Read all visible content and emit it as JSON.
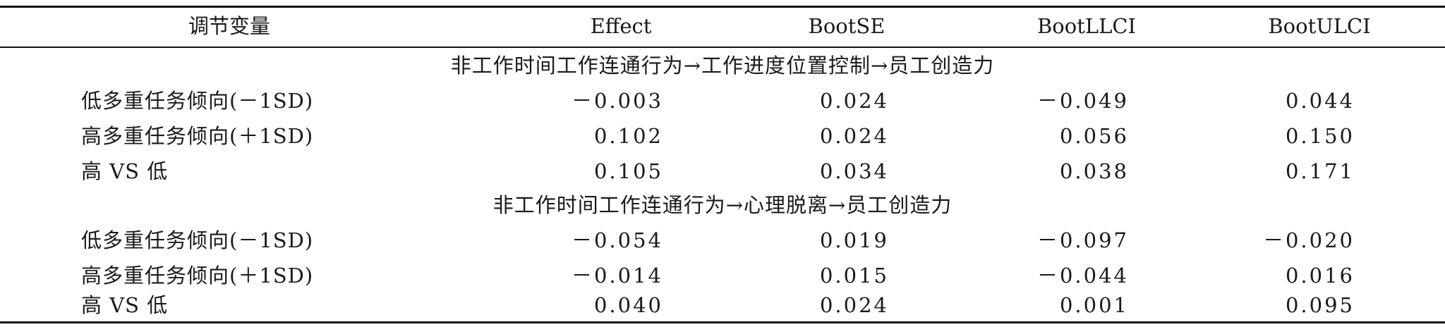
{
  "header": {
    "col0": "调节变量",
    "col1": "Effect",
    "col2": "BootSE",
    "col3": "BootLLCI",
    "col4": "BootULCI"
  },
  "sections": [
    {
      "title": "非工作时间工作连通行为→工作进度位置控制→员工创造力",
      "rows": [
        {
          "label": "低多重任务倾向(－1SD)",
          "effect": "－0.003",
          "se": "0.024",
          "llci": "－0.049",
          "ulci": "0.044"
        },
        {
          "label": "高多重任务倾向(＋1SD)",
          "effect": "0.102",
          "se": "0.024",
          "llci": "0.056",
          "ulci": "0.150"
        },
        {
          "label": "高 VS 低",
          "effect": "0.105",
          "se": "0.034",
          "llci": "0.038",
          "ulci": "0.171"
        }
      ]
    },
    {
      "title": "非工作时间工作连通行为→心理脱离→员工创造力",
      "rows": [
        {
          "label": "低多重任务倾向(－1SD)",
          "effect": "－0.054",
          "se": "0.019",
          "llci": "－0.097",
          "ulci": "－0.020"
        },
        {
          "label": "高多重任务倾向(＋1SD)",
          "effect": "－0.014",
          "se": "0.015",
          "llci": "－0.044",
          "ulci": "0.016"
        },
        {
          "label": "高 VS 低",
          "effect": "0.040",
          "se": "0.024",
          "llci": "0.001",
          "ulci": "0.095"
        }
      ]
    }
  ]
}
